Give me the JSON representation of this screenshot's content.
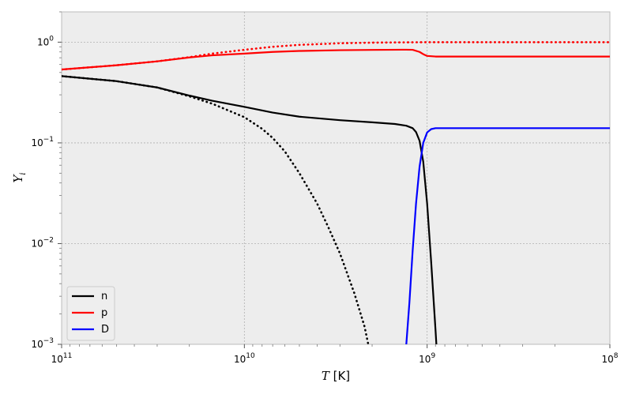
{
  "chart_data": {
    "type": "line",
    "xscale": "log",
    "yscale": "log",
    "xlim": [
      100000000000.0,
      100000000.0
    ],
    "ylim": [
      0.001,
      2.0
    ],
    "x_reversed": true,
    "xlabel_symbol": "T",
    "xlabel_unit": " [K]",
    "ylabel_symbol": "Y",
    "ylabel_subscript": "i",
    "grid": true,
    "legend_position": "lower-left",
    "background": "#ededed",
    "x_ticks": [
      {
        "value": 100000000000.0,
        "base": "10",
        "exp": "11"
      },
      {
        "value": 10000000000.0,
        "base": "10",
        "exp": "10"
      },
      {
        "value": 1000000000.0,
        "base": "10",
        "exp": "9"
      },
      {
        "value": 100000000.0,
        "base": "10",
        "exp": "8"
      }
    ],
    "y_ticks": [
      {
        "value": 1,
        "base": "10",
        "exp": "0"
      },
      {
        "value": 0.1,
        "base": "10",
        "exp": "−1"
      },
      {
        "value": 0.01,
        "base": "10",
        "exp": "−2"
      },
      {
        "value": 0.001,
        "base": "10",
        "exp": "−3"
      }
    ],
    "legend": [
      {
        "label": "n",
        "color": "#000000"
      },
      {
        "label": "p",
        "color": "#ff0000"
      },
      {
        "label": "D",
        "color": "#0000ff"
      }
    ],
    "series": [
      {
        "name": "n",
        "color": "#000000",
        "style": "solid",
        "x": [
          100000000000.0,
          50000000000.0,
          30000000000.0,
          20000000000.0,
          15000000000.0,
          10000000000.0,
          7000000000.0,
          5000000000.0,
          3000000000.0,
          2000000000.0,
          1500000000.0,
          1300000000.0,
          1200000000.0,
          1150000000.0,
          1100000000.0,
          1050000000.0,
          1000000000.0,
          950000000.0,
          900000000.0,
          890000000.0
        ],
        "y": [
          0.46,
          0.41,
          0.355,
          0.295,
          0.262,
          0.228,
          0.2,
          0.182,
          0.168,
          0.16,
          0.154,
          0.148,
          0.14,
          0.128,
          0.105,
          0.065,
          0.025,
          0.0065,
          0.0014,
          0.001
        ]
      },
      {
        "name": "p",
        "color": "#ff0000",
        "style": "solid",
        "x": [
          100000000000.0,
          50000000000.0,
          30000000000.0,
          20000000000.0,
          15000000000.0,
          10000000000.0,
          7000000000.0,
          5000000000.0,
          3000000000.0,
          2000000000.0,
          1300000000.0,
          1200000000.0,
          1100000000.0,
          1050000000.0,
          1000000000.0,
          900000000.0,
          500000000.0,
          100000000.0
        ],
        "y": [
          0.535,
          0.59,
          0.645,
          0.705,
          0.74,
          0.77,
          0.8,
          0.818,
          0.832,
          0.838,
          0.842,
          0.84,
          0.8,
          0.76,
          0.73,
          0.72,
          0.72,
          0.72
        ]
      },
      {
        "name": "D",
        "color": "#0000ff",
        "style": "solid",
        "x": [
          1300000000.0,
          1250000000.0,
          1200000000.0,
          1150000000.0,
          1100000000.0,
          1050000000.0,
          1000000000.0,
          950000000.0,
          900000000.0,
          800000000.0,
          500000000.0,
          100000000.0
        ],
        "y": [
          0.001,
          0.0026,
          0.0085,
          0.025,
          0.058,
          0.1,
          0.127,
          0.137,
          0.14,
          0.14,
          0.14,
          0.14
        ]
      },
      {
        "name": "",
        "color": "#000000",
        "style": "dotted",
        "x": [
          100000000000.0,
          50000000000.0,
          30000000000.0,
          20000000000.0,
          15000000000.0,
          10000000000.0,
          8000000000.0,
          7000000000.0,
          6000000000.0,
          5000000000.0,
          4000000000.0,
          3500000000.0,
          3000000000.0,
          2500000000.0,
          2200000000.0,
          2100000000.0
        ],
        "y": [
          0.46,
          0.41,
          0.355,
          0.29,
          0.245,
          0.18,
          0.138,
          0.112,
          0.082,
          0.05,
          0.025,
          0.015,
          0.008,
          0.0032,
          0.0015,
          0.001
        ]
      },
      {
        "name": "",
        "color": "#ff0000",
        "style": "dotted",
        "x": [
          100000000000.0,
          50000000000.0,
          30000000000.0,
          20000000000.0,
          15000000000.0,
          10000000000.0,
          7000000000.0,
          5000000000.0,
          3000000000.0,
          2000000000.0,
          1000000000.0,
          100000000.0
        ],
        "y": [
          0.535,
          0.59,
          0.645,
          0.71,
          0.77,
          0.84,
          0.9,
          0.94,
          0.975,
          0.99,
          1.0,
          1.0
        ]
      }
    ]
  }
}
